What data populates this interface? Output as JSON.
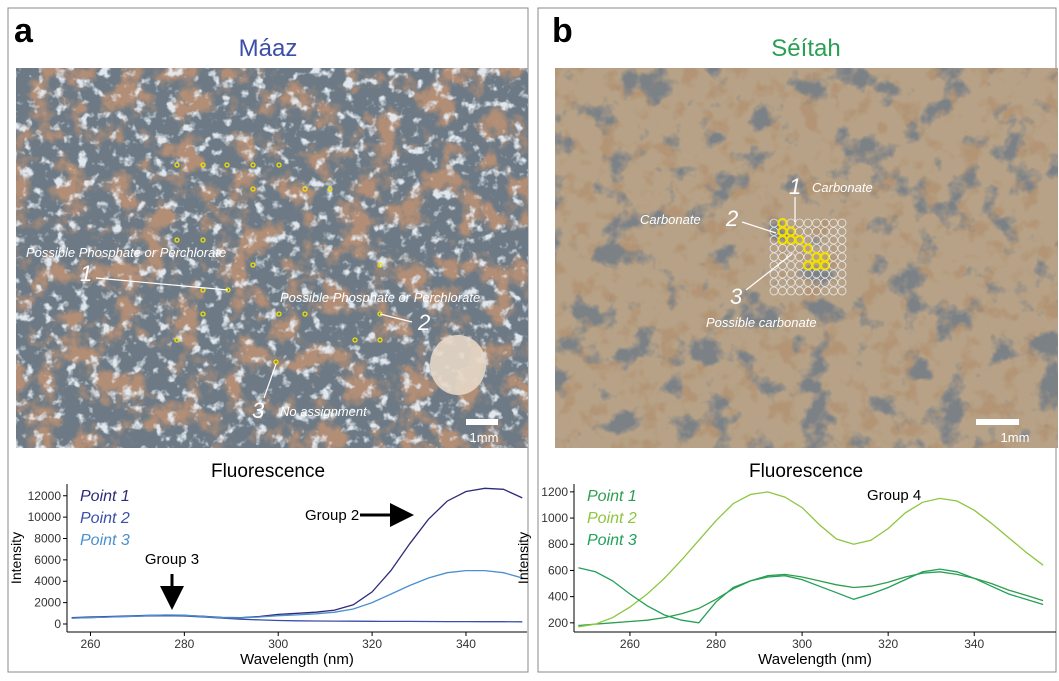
{
  "chart_data": [
    {
      "type": "line",
      "panel": "a",
      "title": "Máaz",
      "image_labels": [
        "Possible Phosphate or Perchlorate",
        "1",
        "Possible Phosphate or Perchlorate",
        "2",
        "3",
        "No assignment"
      ],
      "scale_label": "1mm",
      "chart_title": "Fluorescence",
      "x_label": "Wavelength (nm)",
      "y_label": "Intensity",
      "annotations": [
        "Group 2",
        "Group 3"
      ],
      "x": [
        256,
        260,
        264,
        268,
        272,
        276,
        280,
        284,
        288,
        292,
        296,
        300,
        304,
        308,
        312,
        316,
        320,
        324,
        328,
        332,
        336,
        340,
        344,
        348,
        352
      ],
      "series": [
        {
          "name": "Point 1",
          "color": "#2e2a7a",
          "values": [
            600,
            650,
            700,
            750,
            800,
            820,
            800,
            720,
            620,
            600,
            700,
            900,
            1000,
            1100,
            1300,
            1800,
            3000,
            5000,
            7500,
            9800,
            11500,
            12400,
            12700,
            12600,
            11800
          ]
        },
        {
          "name": "Point 2",
          "color": "#3b4fa8",
          "values": [
            550,
            600,
            650,
            700,
            750,
            780,
            750,
            650,
            550,
            450,
            380,
            330,
            300,
            280,
            270,
            260,
            250,
            240,
            240,
            230,
            220,
            220,
            210,
            210,
            200
          ]
        },
        {
          "name": "Point 3",
          "color": "#4a8fcf",
          "values": [
            550,
            600,
            650,
            700,
            780,
            850,
            820,
            700,
            600,
            580,
            650,
            780,
            850,
            950,
            1100,
            1400,
            2000,
            2800,
            3600,
            4300,
            4800,
            5000,
            5000,
            4800,
            4300
          ]
        }
      ],
      "xlim": [
        255,
        353
      ],
      "ylim": [
        -750,
        13100
      ],
      "xticks": [
        260,
        280,
        300,
        320,
        340
      ],
      "yticks": [
        0,
        2000,
        4000,
        6000,
        8000,
        10000,
        12000
      ],
      "legend": "upper left",
      "title_color": "#3b4fa8"
    },
    {
      "type": "line",
      "panel": "b",
      "title": "Séítah",
      "image_labels": [
        "1",
        "Carbonate",
        "Carbonate",
        "2",
        "3",
        "Possible carbonate"
      ],
      "scale_label": "1mm",
      "chart_title": "Fluorescence",
      "x_label": "Wavelength (nm)",
      "y_label": "Intensity",
      "annotations": [
        "Group 4"
      ],
      "x": [
        248,
        252,
        256,
        260,
        264,
        268,
        272,
        276,
        280,
        284,
        288,
        292,
        296,
        300,
        304,
        308,
        312,
        316,
        320,
        324,
        328,
        332,
        336,
        340,
        344,
        348,
        352,
        356
      ],
      "series": [
        {
          "name": "Point 1",
          "color": "#2e9e4e",
          "values": [
            180,
            190,
            200,
            210,
            220,
            240,
            270,
            310,
            380,
            460,
            520,
            560,
            570,
            550,
            520,
            490,
            470,
            480,
            510,
            550,
            580,
            590,
            570,
            540,
            500,
            450,
            410,
            370
          ]
        },
        {
          "name": "Point 2",
          "color": "#8cc63f",
          "values": [
            170,
            190,
            240,
            320,
            420,
            540,
            680,
            830,
            980,
            1110,
            1180,
            1200,
            1160,
            1080,
            950,
            840,
            800,
            830,
            920,
            1040,
            1120,
            1150,
            1130,
            1060,
            960,
            850,
            740,
            640
          ]
        },
        {
          "name": "Point 3",
          "color": "#22a05a",
          "values": [
            620,
            590,
            520,
            420,
            330,
            260,
            220,
            200,
            360,
            470,
            520,
            550,
            560,
            530,
            480,
            430,
            380,
            420,
            470,
            530,
            590,
            610,
            590,
            540,
            480,
            420,
            380,
            340
          ]
        }
      ],
      "xlim": [
        247,
        359
      ],
      "ylim": [
        130,
        1260
      ],
      "xticks": [
        260,
        280,
        300,
        320,
        340
      ],
      "yticks": [
        200,
        400,
        600,
        800,
        1000,
        1200
      ],
      "legend": "upper left",
      "title_color": "#2aa052"
    }
  ]
}
